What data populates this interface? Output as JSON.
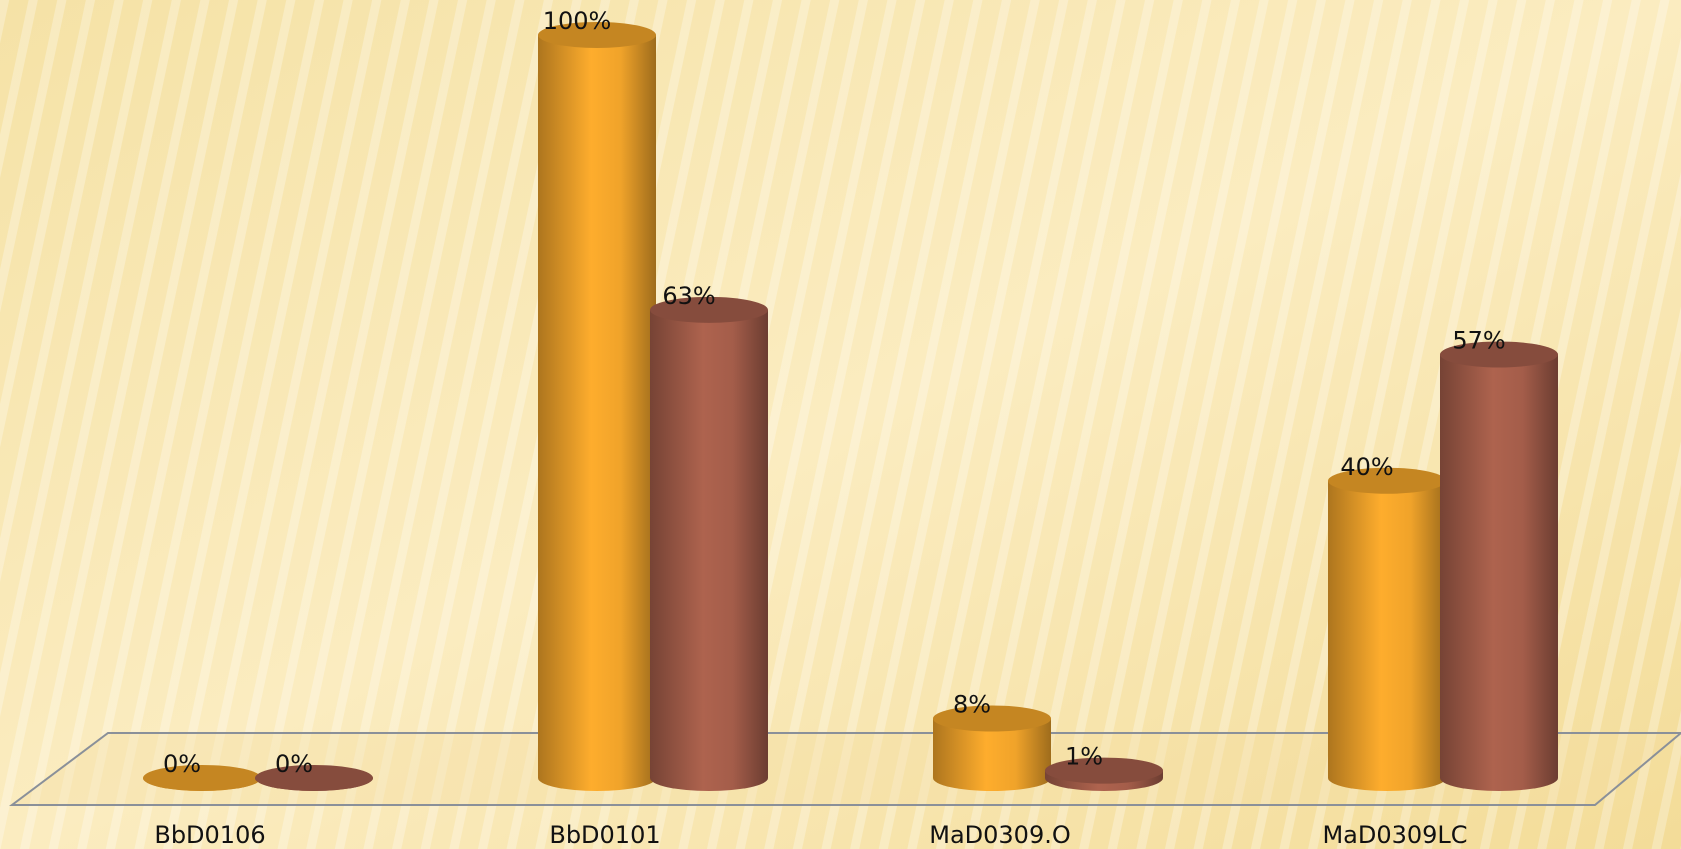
{
  "chart_data": {
    "type": "bar3d",
    "categories": [
      "BbD0106",
      "BbD0101",
      "MaD0309.O",
      "MaD0309LC"
    ],
    "series": [
      {
        "color": "#f0a32a",
        "values": [
          0,
          100,
          8,
          40
        ],
        "value_labels": [
          "0%",
          "100%",
          "8%",
          "40%"
        ]
      },
      {
        "color": "#a45d4a",
        "values": [
          0,
          63,
          1,
          57
        ],
        "value_labels": [
          "0%",
          "63%",
          "1%",
          "57%"
        ]
      }
    ]
  }
}
